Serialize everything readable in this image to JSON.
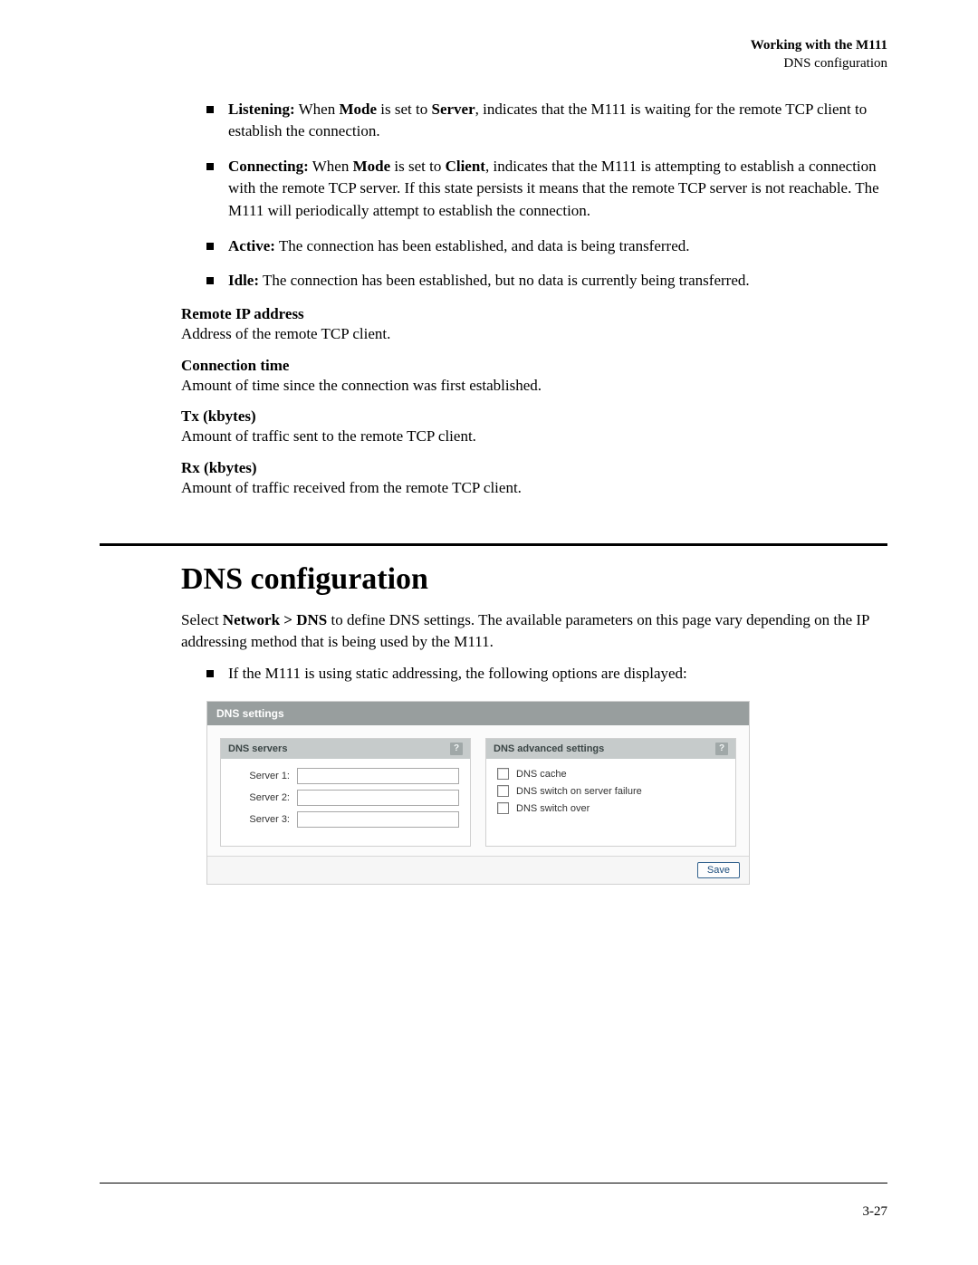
{
  "header": {
    "title": "Working with the M111",
    "subtitle": "DNS configuration"
  },
  "status_bullets": [
    {
      "label": "Listening:",
      "mid1": "Mode",
      "mid2": "Server",
      "pre": " When ",
      "between": " is set to ",
      "rest": ", indicates that the M111 is waiting for the remote TCP client to establish the connection."
    },
    {
      "label": "Connecting:",
      "mid1": "Mode",
      "mid2": "Client",
      "pre": " When ",
      "between": " is set to ",
      "rest": ", indicates that the M111 is attempting to establish a connection with the remote TCP server. If this state persists it means that the remote TCP server is not reachable. The M111 will periodically attempt to establish the connection."
    },
    {
      "label": "Active:",
      "rest": " The connection has been established, and data is being transferred."
    },
    {
      "label": "Idle:",
      "rest": " The connection has been established, but no data is currently being transferred."
    }
  ],
  "defs": [
    {
      "term": "Remote IP address",
      "desc": "Address of the remote TCP client."
    },
    {
      "term": "Connection time",
      "desc": "Amount of time since the connection was first established."
    },
    {
      "term": "Tx (kbytes)",
      "desc": "Amount of traffic sent to the remote TCP client."
    },
    {
      "term": "Rx (kbytes)",
      "desc": "Amount of traffic received from the remote TCP client."
    }
  ],
  "section": {
    "title": "DNS configuration",
    "intro_pre": "Select ",
    "intro_bold": "Network > DNS",
    "intro_post": " to define DNS settings. The available parameters on this page vary depending on the IP addressing method that is being used by the M111.",
    "static_bullet": "If the M111 is using static addressing, the following options are displayed:"
  },
  "panel": {
    "title": "DNS settings",
    "servers_header": "DNS servers",
    "advanced_header": "DNS advanced settings",
    "help": "?",
    "server_labels": [
      "Server 1:",
      "Server 2:",
      "Server 3:"
    ],
    "server_values": [
      "",
      "",
      ""
    ],
    "checks": [
      "DNS cache",
      "DNS switch on server failure",
      "DNS switch over"
    ],
    "save": "Save"
  },
  "page_number": "3-27",
  "colors": {
    "panel_title_bg": "#989e9e",
    "subpanel_header_bg": "#c6cbcb",
    "save_border": "#35648f"
  }
}
